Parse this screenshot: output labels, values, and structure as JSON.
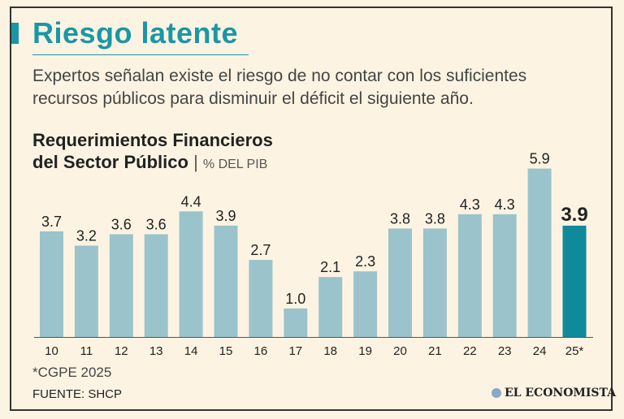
{
  "header": {
    "title": "Riesgo latente",
    "subtitle": "Expertos señalan existe el riesgo de no contar con los suficientes recursos públicos para disminuir el déficit el siguiente año."
  },
  "chart_data": {
    "type": "bar",
    "title_line1": "Requerimientos Financieros",
    "title_line2": "del Sector Público",
    "unit": "% DEL PIB",
    "categories": [
      "10",
      "11",
      "12",
      "13",
      "14",
      "15",
      "16",
      "17",
      "18",
      "19",
      "20",
      "21",
      "22",
      "23",
      "24",
      "25*"
    ],
    "values": [
      3.7,
      3.2,
      3.6,
      3.6,
      4.4,
      3.9,
      2.7,
      1.0,
      2.1,
      2.3,
      3.8,
      3.8,
      4.3,
      4.3,
      5.9,
      3.9
    ],
    "highlight_index": 15,
    "ylim": [
      0,
      6.4
    ],
    "grid": false,
    "colors": {
      "bar": "#9bc3cb",
      "highlight": "#0f8a9a"
    }
  },
  "footer": {
    "note": "*CGPE 2025",
    "source": "FUENTE: SHCP",
    "logo_text": "EL ECONOMISTA",
    "logo_icon": "globe-icon"
  }
}
